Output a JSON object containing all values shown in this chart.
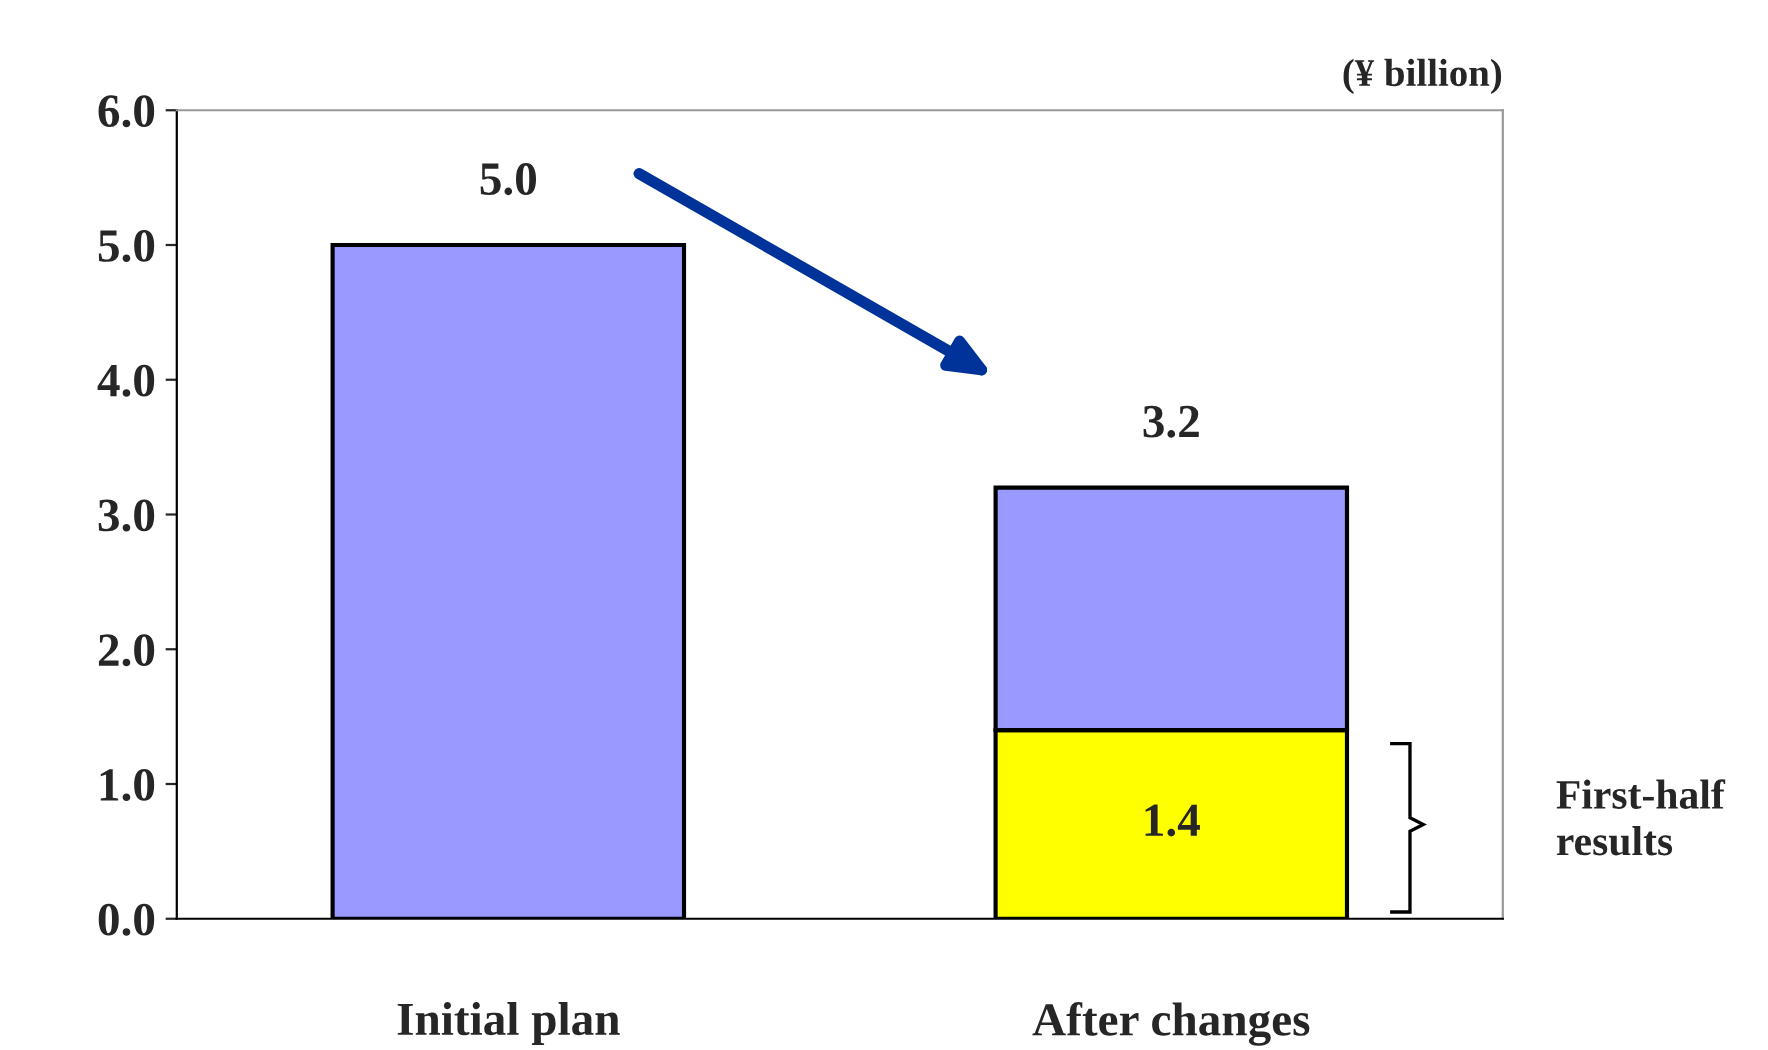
{
  "chart_data": {
    "type": "bar",
    "stacked": true,
    "categories": [
      "Initial plan",
      "After changes"
    ],
    "series": [
      {
        "color": "#ffff00",
        "values": [
          null,
          1.4
        ],
        "value_labels": [
          null,
          "1.4"
        ]
      },
      {
        "color": "#9999ff",
        "values": [
          5.0,
          1.8
        ]
      }
    ],
    "totals": [
      "5.0",
      "3.2"
    ],
    "ylim": [
      0,
      6
    ],
    "yticks": [
      {
        "value": 0,
        "label": "0.0"
      },
      {
        "value": 1,
        "label": "1.0"
      },
      {
        "value": 2,
        "label": "2.0"
      },
      {
        "value": 3,
        "label": "3.0"
      },
      {
        "value": 4,
        "label": "4.0"
      },
      {
        "value": 5,
        "label": "5.0"
      },
      {
        "value": 6,
        "label": "6.0"
      }
    ],
    "annotations": [
      "(¥ billion)",
      "First-half\nresults"
    ],
    "grid": false,
    "legend": false
  }
}
